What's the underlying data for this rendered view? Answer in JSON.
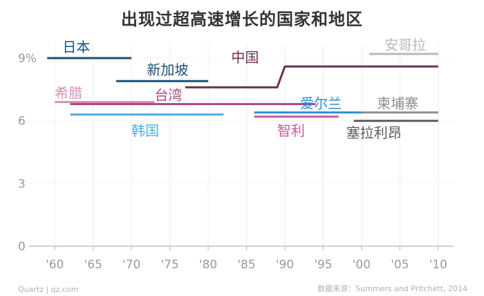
{
  "chart_data": {
    "type": "line",
    "title": "出现过超高速增长的国家和地区",
    "xlabel": "",
    "ylabel": "",
    "xlim": [
      1957,
      2012
    ],
    "ylim": [
      0,
      10
    ],
    "x_ticks": [
      {
        "value": 1960,
        "label": "'60"
      },
      {
        "value": 1965,
        "label": "'65"
      },
      {
        "value": 1970,
        "label": "'70"
      },
      {
        "value": 1975,
        "label": "'75"
      },
      {
        "value": 1980,
        "label": "'80"
      },
      {
        "value": 1985,
        "label": "'85"
      },
      {
        "value": 1990,
        "label": "'90"
      },
      {
        "value": 1995,
        "label": "'95"
      },
      {
        "value": 2000,
        "label": "'00"
      },
      {
        "value": 2005,
        "label": "'05"
      },
      {
        "value": 2010,
        "label": "'10"
      }
    ],
    "y_ticks": [
      {
        "value": 0,
        "label": "0"
      },
      {
        "value": 3,
        "label": "3"
      },
      {
        "value": 6,
        "label": "6"
      },
      {
        "value": 9,
        "label": "9%"
      }
    ],
    "grid": true,
    "legend": "none",
    "series": [
      {
        "name": "日本",
        "color": "#1d4f72",
        "points": [
          [
            1959,
            9.0
          ],
          [
            1970,
            9.0
          ]
        ],
        "label_at": [
          1961,
          9.3
        ]
      },
      {
        "name": "新加坡",
        "color": "#1d4f72",
        "points": [
          [
            1968,
            7.9
          ],
          [
            1980,
            7.9
          ]
        ],
        "label_at": [
          1972,
          8.2
        ]
      },
      {
        "name": "中国",
        "color": "#6b2f53",
        "points": [
          [
            1977,
            7.6
          ],
          [
            1989,
            7.6
          ],
          [
            1990,
            8.6
          ],
          [
            2010,
            8.6
          ]
        ],
        "label_at": [
          1983,
          8.8
        ]
      },
      {
        "name": "希腊",
        "color": "#d98fb3",
        "points": [
          [
            1960,
            6.9
          ],
          [
            1973,
            6.9
          ]
        ],
        "label_at": [
          1960,
          7.1
        ]
      },
      {
        "name": "台湾",
        "color": "#a84b84",
        "points": [
          [
            1962,
            6.8
          ],
          [
            1994,
            6.8
          ]
        ],
        "label_at": [
          1973,
          7.0
        ]
      },
      {
        "name": "韩国",
        "color": "#4aaee6",
        "points": [
          [
            1962,
            6.3
          ],
          [
            1982,
            6.3
          ]
        ],
        "label_at": [
          1970,
          5.3
        ]
      },
      {
        "name": "爱尔兰",
        "color": "#2d8fd0",
        "points": [
          [
            1986,
            6.4
          ],
          [
            2000,
            6.4
          ]
        ],
        "label_at": [
          1992,
          6.6
        ]
      },
      {
        "name": "智利",
        "color": "#d254a4",
        "points": [
          [
            1986,
            6.2
          ],
          [
            1997,
            6.2
          ]
        ],
        "label_at": [
          1989,
          5.3
        ]
      },
      {
        "name": "安哥拉",
        "color": "#b8b8b8",
        "points": [
          [
            2001,
            9.2
          ],
          [
            2010,
            9.2
          ]
        ],
        "label_at": [
          2003,
          9.4
        ]
      },
      {
        "name": "柬埔寨",
        "color": "#8e8e8e",
        "points": [
          [
            2000,
            6.4
          ],
          [
            2010,
            6.4
          ]
        ],
        "label_at": [
          2002,
          6.6
        ]
      },
      {
        "name": "塞拉利昂",
        "color": "#5a5a5a",
        "points": [
          [
            1999,
            6.0
          ],
          [
            2010,
            6.0
          ]
        ],
        "label_at": [
          1998,
          5.2
        ]
      }
    ]
  },
  "footer": {
    "credit": "Quartz | qz.com",
    "source": "数据来源：Summers and Pritchett, 2014"
  }
}
